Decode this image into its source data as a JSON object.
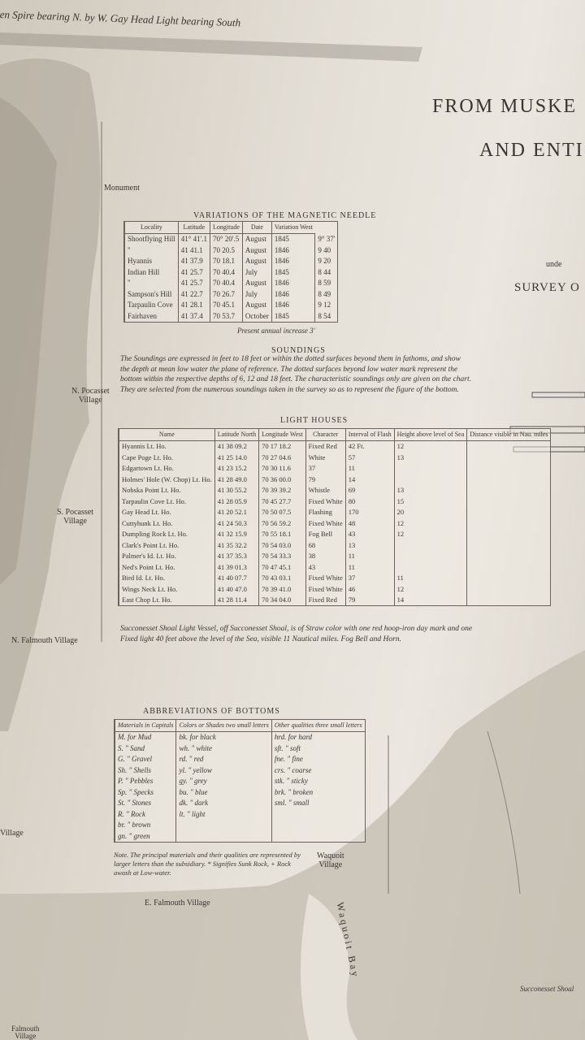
{
  "header": {
    "bearing_line": "en Spire bearing N. by W. Gay Head Light bearing South",
    "title_lines": [
      "FROM MUSKE",
      "AND ENTI"
    ],
    "subtitle_fragment": "unde",
    "survey_line": "SURVEY O"
  },
  "place_labels": {
    "monument": "Monument",
    "n_pocasset": [
      "N. Pocasset",
      "Village"
    ],
    "s_pocasset": [
      "S. Pocasset",
      "Village"
    ],
    "n_falmouth": "N. Falmouth Village",
    "village_left": "Village",
    "e_falmouth": "E. Falmouth Village",
    "waquoit": [
      "Waquoit",
      "Village"
    ],
    "waquoit_bay": "Waquoit Bay",
    "falmouth": [
      "Falmouth",
      "Village"
    ],
    "shoal": "Succonesset Shoal"
  },
  "magnetic": {
    "title": "VARIATIONS OF THE MAGNETIC NEEDLE",
    "headers": [
      "Locality",
      "Latitude",
      "Longitude",
      "Date",
      "Variation West"
    ],
    "rows": [
      [
        "Shootflying Hill",
        "41° 41'.1",
        "70° 20'.5",
        "August",
        "1845",
        "9° 37'"
      ],
      [
        "\"",
        "41 41.1",
        "70 20.5",
        "August",
        "1846",
        "9 40"
      ],
      [
        "Hyannis",
        "41 37.9",
        "70 18.1",
        "August",
        "1846",
        "9 20"
      ],
      [
        "Indian Hill",
        "41 25.7",
        "70 40.4",
        "July",
        "1845",
        "8 44"
      ],
      [
        "\"",
        "41 25.7",
        "70 40.4",
        "August",
        "1846",
        "8 59"
      ],
      [
        "Sampson's Hill",
        "41 22.7",
        "70 26.7",
        "July",
        "1846",
        "8 49"
      ],
      [
        "Tarpaulin Cove",
        "41 28.1",
        "70 45.1",
        "August",
        "1846",
        "9 12"
      ],
      [
        "Fairhaven",
        "41 37.4",
        "70 53.7",
        "October",
        "1845",
        "8 54"
      ]
    ],
    "footer": "Present annual increase 3'"
  },
  "soundings": {
    "title": "SOUNDINGS",
    "text": "The Soundings are expressed in feet to 18 feet or within the dotted surfaces beyond them in fathoms, and show the depth at mean low water the plane of reference. The dotted surfaces beyond low water mark represent the bottom within the respective depths of 6, 12 and 18 feet. The characteristic soundings only are given on the chart. They are selected from the numerous soundings taken in the survey so as to represent the figure of the bottom."
  },
  "lighthouses": {
    "title": "LIGHT HOUSES",
    "headers": [
      "Name",
      "Latitude North",
      "Longitude West",
      "Character",
      "Interval of Flash",
      "Height above level of Sea",
      "Distance visible in Nau. miles"
    ],
    "rows": [
      [
        "Hyannis Lt. Ho.",
        "41 38 09.2",
        "70 17 18.2",
        "Fixed Red",
        "42 Ft.",
        "12"
      ],
      [
        "Cape Poge Lt. Ho.",
        "41 25 14.0",
        "70 27 04.6",
        "White",
        "57",
        "13"
      ],
      [
        "Edgartown Lt. Ho.",
        "41 23 15.2",
        "70 30 11.6",
        "37",
        "11"
      ],
      [
        "Holmes' Hole (W. Chop) Lt. Ho.",
        "41 28 49.0",
        "70 36 00.0",
        "79",
        "14"
      ],
      [
        "Nobska Point Lt. Ho.",
        "41 30 55.2",
        "70 39 39.2",
        "Whistle",
        "69",
        "13"
      ],
      [
        "Tarpaulin Cove Lt. Ho.",
        "41 28 05.9",
        "70 45 27.7",
        "Fixed White",
        "80",
        "15"
      ],
      [
        "Gay Head Lt. Ho.",
        "41 20 52.1",
        "70 50 07.5",
        "Flashing",
        "170",
        "20"
      ],
      [
        "Cuttyhunk Lt. Ho.",
        "41 24 50.3",
        "70 56 59.2",
        "Fixed White",
        "48",
        "12"
      ],
      [
        "Dumpling Rock Lt. Ho.",
        "41 32 15.9",
        "70 55 18.1",
        "Fog Bell",
        "43",
        "12"
      ],
      [
        "Clark's Point Lt. Ho.",
        "41 35 32.2",
        "70 54 03.0",
        "68",
        "13"
      ],
      [
        "Palmer's Id. Lt. Ho.",
        "41 37 35.3",
        "70 54 33.3",
        "38",
        "11"
      ],
      [
        "Ned's Point Lt. Ho.",
        "41 39 01.3",
        "70 47 45.1",
        "43",
        "11"
      ],
      [
        "Bird Id. Lt. Ho.",
        "41 40 07.7",
        "70 43 03.1",
        "Fixed White",
        "37",
        "11"
      ],
      [
        "Wings Neck Lt. Ho.",
        "41 40 47.0",
        "70 39 41.0",
        "Fixed White",
        "46",
        "12"
      ],
      [
        "East Chop Lt. Ho.",
        "41 28 11.4",
        "70 34 04.0",
        "Fixed Red",
        "79",
        "14"
      ]
    ]
  },
  "light_vessel": "Succonesset Shoal Light Vessel, off Succonesset Shoal, is of Straw color with one red hoop-iron day mark and one Fixed light 40 feet above the level of the Sea, visible 11 Nautical miles. Fog Bell and Horn.",
  "abbreviations": {
    "title": "ABBREVIATIONS OF BOTTOMS",
    "headers": [
      "Materials in Capitals",
      "Colors or Shades two small letters",
      "Other qualities three small letters"
    ],
    "rows": [
      [
        "M. for Mud",
        "bk. for black",
        "hrd. for hard"
      ],
      [
        "S. \" Sand",
        "wh. \" white",
        "sft. \" soft"
      ],
      [
        "G. \" Gravel",
        "rd. \" red",
        "fne. \" fine"
      ],
      [
        "Sh. \" Shells",
        "yl. \" yellow",
        "crs. \" coarse"
      ],
      [
        "P. \" Pebbles",
        "gy. \" grey",
        "stk. \" sticky"
      ],
      [
        "Sp. \" Specks",
        "bu. \" blue",
        "brk. \" broken"
      ],
      [
        "St. \" Stones",
        "dk. \" dark",
        "sml. \" small"
      ],
      [
        "R. \" Rock",
        "lt. \" light"
      ],
      [
        "br. \" brown"
      ],
      [
        "gn. \" green"
      ]
    ],
    "note": "Note. The principal materials and their qualities are represented by larger letters than the subsidiary. * Signifies Sunk Rock, + Rock awash at Low-water."
  }
}
